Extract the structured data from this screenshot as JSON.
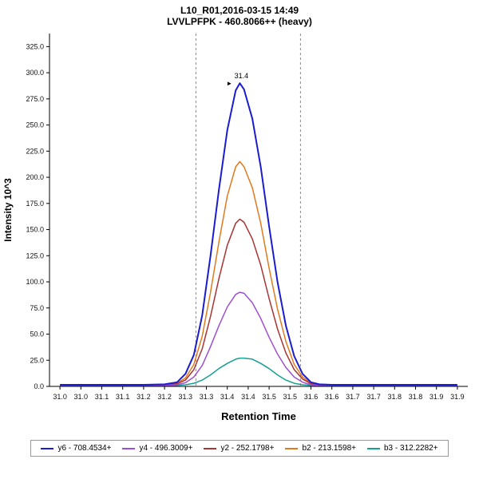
{
  "chart_data": {
    "type": "line",
    "title": "L10_R01,2016-03-15 14:49",
    "subtitle": "LVVLPFPK - 460.8066++ (heavy)",
    "xlabel": "Retention Time",
    "ylabel": "Intensity 10^3",
    "xlim": [
      30.975,
      31.975
    ],
    "ylim": [
      0,
      337.5
    ],
    "y_ticks": [
      0,
      25,
      50,
      75,
      100,
      125,
      150,
      175,
      200,
      225,
      250,
      275,
      300,
      325
    ],
    "x_tick_values": [
      31.0,
      31.05,
      31.1,
      31.15,
      31.2,
      31.25,
      31.3,
      31.35,
      31.4,
      31.45,
      31.5,
      31.55,
      31.6,
      31.65,
      31.7,
      31.75,
      31.8,
      31.85,
      31.9,
      31.95
    ],
    "x_tick_labels": [
      "31.0",
      "31.0",
      "31.1",
      "31.1",
      "31.2",
      "31.2",
      "31.3",
      "31.3",
      "31.4",
      "31.4",
      "31.5",
      "31.5",
      "31.6",
      "31.6",
      "31.7",
      "31.7",
      "31.8",
      "31.8",
      "31.9",
      "31.9"
    ],
    "boundaries": [
      31.325,
      31.575
    ],
    "annotation": {
      "label": "31.4",
      "x": 31.43,
      "y": 290,
      "arrow": "►",
      "color": "#333399"
    },
    "x": [
      31.0,
      31.05,
      31.1,
      31.15,
      31.2,
      31.25,
      31.28,
      31.3,
      31.32,
      31.34,
      31.36,
      31.38,
      31.4,
      31.42,
      31.43,
      31.44,
      31.46,
      31.48,
      31.5,
      31.52,
      31.54,
      31.56,
      31.58,
      31.6,
      31.62,
      31.65,
      31.7,
      31.75,
      31.8,
      31.85,
      31.9,
      31.95
    ],
    "series": [
      {
        "name": "y6 - 708.4534+",
        "color": "#1c1ccf",
        "width": 2,
        "values": [
          1.5,
          1.5,
          1.5,
          1.5,
          1.5,
          2,
          4,
          12,
          30,
          68,
          125,
          188,
          245,
          283,
          290,
          284,
          256,
          210,
          153,
          100,
          58,
          29,
          12,
          4,
          2,
          1.5,
          1.5,
          1.5,
          1.5,
          1.5,
          1.5,
          1.5
        ]
      },
      {
        "name": "y4 - 496.3009+",
        "color": "#9d4fd4",
        "width": 1.5,
        "values": [
          0.8,
          0.8,
          0.8,
          0.8,
          0.8,
          1,
          1.5,
          3.5,
          9,
          20,
          38,
          58,
          76,
          88,
          90,
          89,
          80,
          65,
          47,
          31,
          18,
          9,
          4,
          1.5,
          1,
          0.8,
          0.8,
          0.8,
          0.8,
          0.8,
          0.8,
          0.8
        ]
      },
      {
        "name": "y2 - 252.1798+",
        "color": "#a83434",
        "width": 1.5,
        "values": [
          1,
          1,
          1,
          1,
          1,
          1.2,
          2.5,
          6,
          16,
          36,
          67,
          103,
          135,
          156,
          160,
          157,
          141,
          116,
          84,
          55,
          32,
          16,
          7,
          2.5,
          1.2,
          1,
          1,
          1,
          1,
          1,
          1,
          1
        ]
      },
      {
        "name": "b2 - 213.1598+",
        "color": "#e07a1e",
        "width": 1.5,
        "values": [
          1,
          1,
          1,
          1,
          1,
          1.5,
          3,
          8,
          21,
          48,
          90,
          138,
          182,
          210,
          215,
          210,
          190,
          156,
          113,
          74,
          43,
          21,
          9,
          3,
          1.5,
          1,
          1,
          1,
          1,
          1,
          1,
          1
        ]
      },
      {
        "name": "b3 - 312.2282+",
        "color": "#16a090",
        "width": 1.5,
        "values": [
          0.6,
          0.6,
          0.6,
          0.6,
          0.6,
          0.7,
          1,
          1.5,
          3,
          6,
          11,
          17,
          22,
          26,
          27,
          27,
          26,
          22,
          17,
          11,
          6,
          3,
          1.5,
          1,
          0.7,
          0.6,
          0.6,
          0.6,
          0.6,
          0.6,
          0.6,
          0.6
        ]
      }
    ]
  }
}
